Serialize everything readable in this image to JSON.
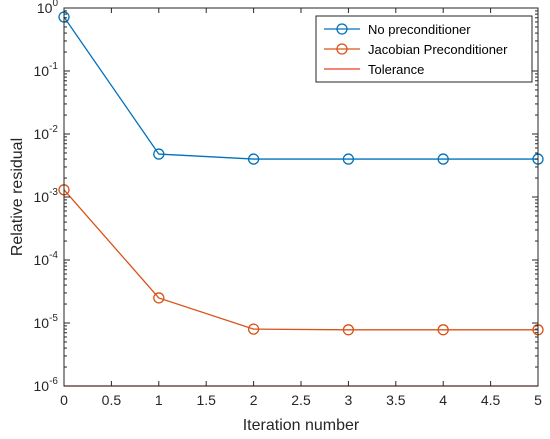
{
  "chart_data": {
    "type": "line",
    "xlabel": "Iteration number",
    "ylabel": "Relative residual",
    "xlim": [
      0,
      5
    ],
    "ylim": [
      1e-06,
      1
    ],
    "yscale": "log",
    "grid": false,
    "legend_position": "top-right",
    "x_ticks": [
      "0",
      "0.5",
      "1",
      "1.5",
      "2",
      "2.5",
      "3",
      "3.5",
      "4",
      "4.5",
      "5"
    ],
    "y_ticks": [
      {
        "base": "10",
        "exp": "-6"
      },
      {
        "base": "10",
        "exp": "-5"
      },
      {
        "base": "10",
        "exp": "-4"
      },
      {
        "base": "10",
        "exp": "-3"
      },
      {
        "base": "10",
        "exp": "-2"
      },
      {
        "base": "10",
        "exp": "-1"
      },
      {
        "base": "10",
        "exp": "0"
      }
    ],
    "series": [
      {
        "name": "No preconditioner",
        "color": "#0072BD",
        "marker": "circle",
        "x": [
          0,
          1,
          2,
          3,
          4,
          5
        ],
        "y": [
          0.72,
          0.0048,
          0.004,
          0.004,
          0.004,
          0.004
        ]
      },
      {
        "name": "Jacobian Preconditioner",
        "color": "#D95319",
        "marker": "circle",
        "x": [
          0,
          1,
          2,
          3,
          4,
          5
        ],
        "y": [
          0.0013,
          2.5e-05,
          8e-06,
          7.8e-06,
          7.8e-06,
          7.8e-06
        ]
      },
      {
        "name": "Tolerance",
        "color": "#EF3B2C",
        "marker": "none",
        "x": [
          0,
          5
        ],
        "y": [
          1e-06,
          1e-06
        ]
      }
    ]
  }
}
